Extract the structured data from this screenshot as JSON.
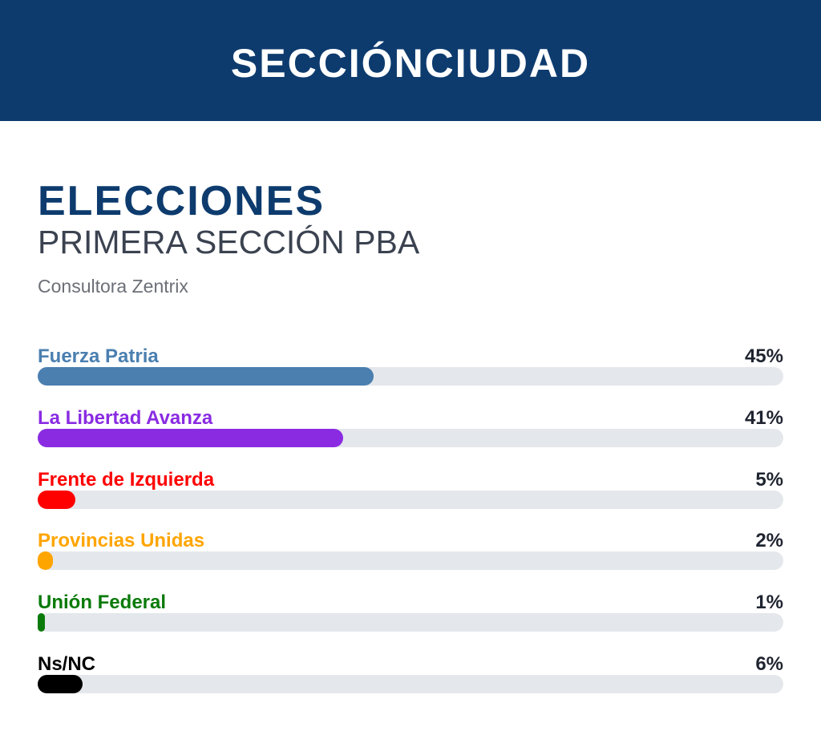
{
  "header": {
    "title": "SECCIÓNCIUDAD"
  },
  "title": "ELECCIONES",
  "subtitle": "PRIMERA SECCIÓN PBA",
  "source": "Consultora Zentrix",
  "chart_data": {
    "type": "bar",
    "orientation": "horizontal",
    "title": "ELECCIONES",
    "subtitle": "PRIMERA SECCIÓN PBA",
    "source": "Consultora Zentrix",
    "xlim": [
      0,
      100
    ],
    "unit": "%",
    "grid": false,
    "categories": [
      "Fuerza Patria",
      "La Libertad Avanza",
      "Frente de Izquierda",
      "Provincias Unidas",
      "Unión Federal",
      "Ns/NC"
    ],
    "values": [
      45,
      41,
      5,
      2,
      1,
      6
    ],
    "value_labels": [
      "45%",
      "41%",
      "5%",
      "2%",
      "1%",
      "6%"
    ],
    "colors": [
      "#4a7fb0",
      "#8a2be2",
      "#ff0000",
      "#ffa500",
      "#0a7a0a",
      "#000000"
    ],
    "track_color": "#e4e7eb"
  }
}
